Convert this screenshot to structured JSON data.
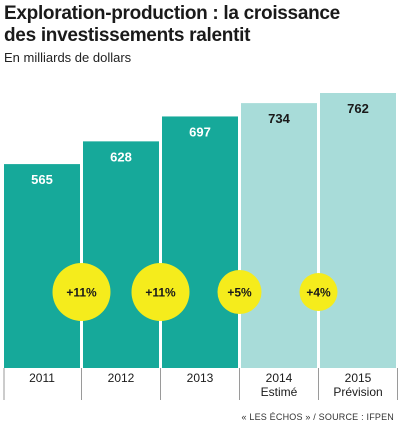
{
  "title_line1": "Exploration-production : la croissance",
  "title_line2": "des investissements ralentit",
  "subtitle": "En milliards de dollars",
  "source": "« LES ÉCHOS » / SOURCE : IFPEN",
  "colors": {
    "bar_actual": "#16a99a",
    "bar_forecast": "#a8dcd9",
    "bubble": "#f5ec1c",
    "divider": "#9a9a9a"
  },
  "chart_data": {
    "type": "bar",
    "title": "Exploration-production : la croissance des investissements ralentit",
    "ylabel": "En milliards de dollars",
    "categories": [
      "2011",
      "2012",
      "2013",
      "2014",
      "2015"
    ],
    "sublabels": [
      "",
      "",
      "",
      "Estimé",
      "Prévision"
    ],
    "values": [
      565,
      628,
      697,
      734,
      762
    ],
    "value_labels": [
      "565",
      "628",
      "697",
      "734",
      "762"
    ],
    "growth_labels": [
      "+11%",
      "+11%",
      "+5%",
      "+4%"
    ],
    "estimated": [
      false,
      false,
      false,
      true,
      true
    ],
    "ylim": [
      0,
      762
    ],
    "grid": false,
    "legend": "none"
  }
}
